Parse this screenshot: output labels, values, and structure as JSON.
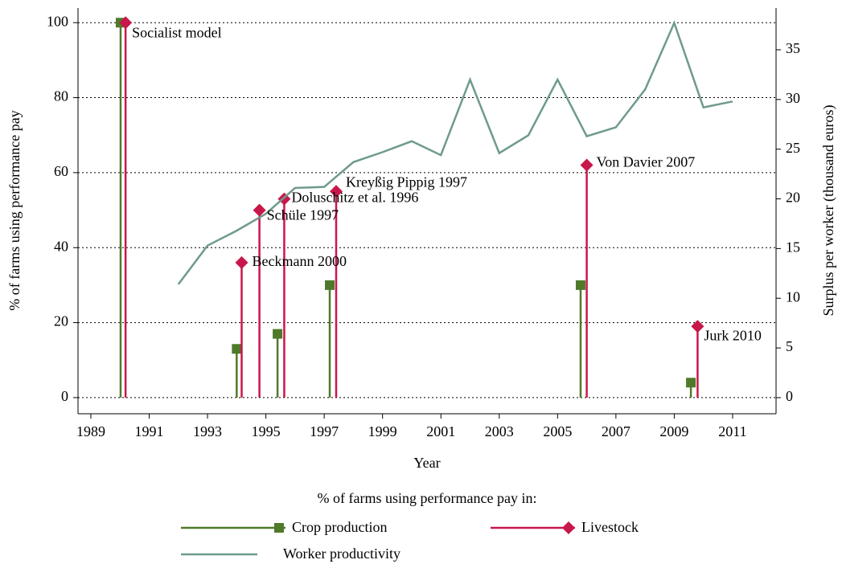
{
  "chart_data": {
    "type": "stem-line",
    "xlabel": "Year",
    "ylabel": "% of farms using performance pay",
    "y2label": "Surplus per worker (thousand euros)",
    "legend_title": "% of farms using performance pay in:",
    "xlim": [
      1988.56,
      2012.49
    ],
    "xticks": [
      1989,
      1991,
      1993,
      1995,
      1997,
      1999,
      2001,
      2003,
      2005,
      2007,
      2009,
      2011
    ],
    "ylim": [
      -4.3,
      103.9
    ],
    "yticks": [
      0,
      20,
      40,
      60,
      80,
      100
    ],
    "y2lim": [
      -1.62,
      39.2
    ],
    "y2ticks": [
      0,
      5,
      10,
      15,
      20,
      25,
      30,
      35
    ],
    "grid": true,
    "series": [
      {
        "name": "Crop production",
        "color": "#4f7a2b",
        "marker": "square",
        "x": [
          1990.02,
          1994.0,
          1995.4,
          1997.19,
          2005.79,
          2009.57
        ],
        "values": [
          100,
          13,
          17,
          30,
          30,
          4
        ]
      },
      {
        "name": "Livestock",
        "color": "#c8174a",
        "marker": "diamond",
        "x": [
          1990.19,
          1994.17,
          1994.78,
          1995.63,
          1997.41,
          2006.0,
          2009.8
        ],
        "values": [
          100,
          36,
          50,
          53,
          55,
          62,
          19
        ]
      },
      {
        "name": "Worker productivity",
        "color": "#6f9a8d",
        "axis": "y2",
        "x": [
          1992,
          1993,
          1994,
          1995,
          1996,
          1997,
          1998,
          1999,
          2000,
          2001,
          2002,
          2003,
          2004,
          2005,
          2006,
          2007,
          2008,
          2009,
          2010,
          2011
        ],
        "values": [
          11.4,
          15.3,
          16.8,
          18.5,
          21.1,
          21.2,
          23.7,
          24.7,
          25.8,
          24.4,
          32.0,
          24.6,
          26.4,
          32.0,
          26.3,
          27.2,
          31.0,
          37.7,
          29.2,
          29.8
        ]
      }
    ],
    "annotations": [
      "Socialist model",
      "Beckmann 2000",
      "Schüle 1997",
      "Doluschitz et al. 1996",
      "Kreyßig Pippig 1997",
      "Von Davier 2007",
      "Jurk 2010"
    ]
  }
}
